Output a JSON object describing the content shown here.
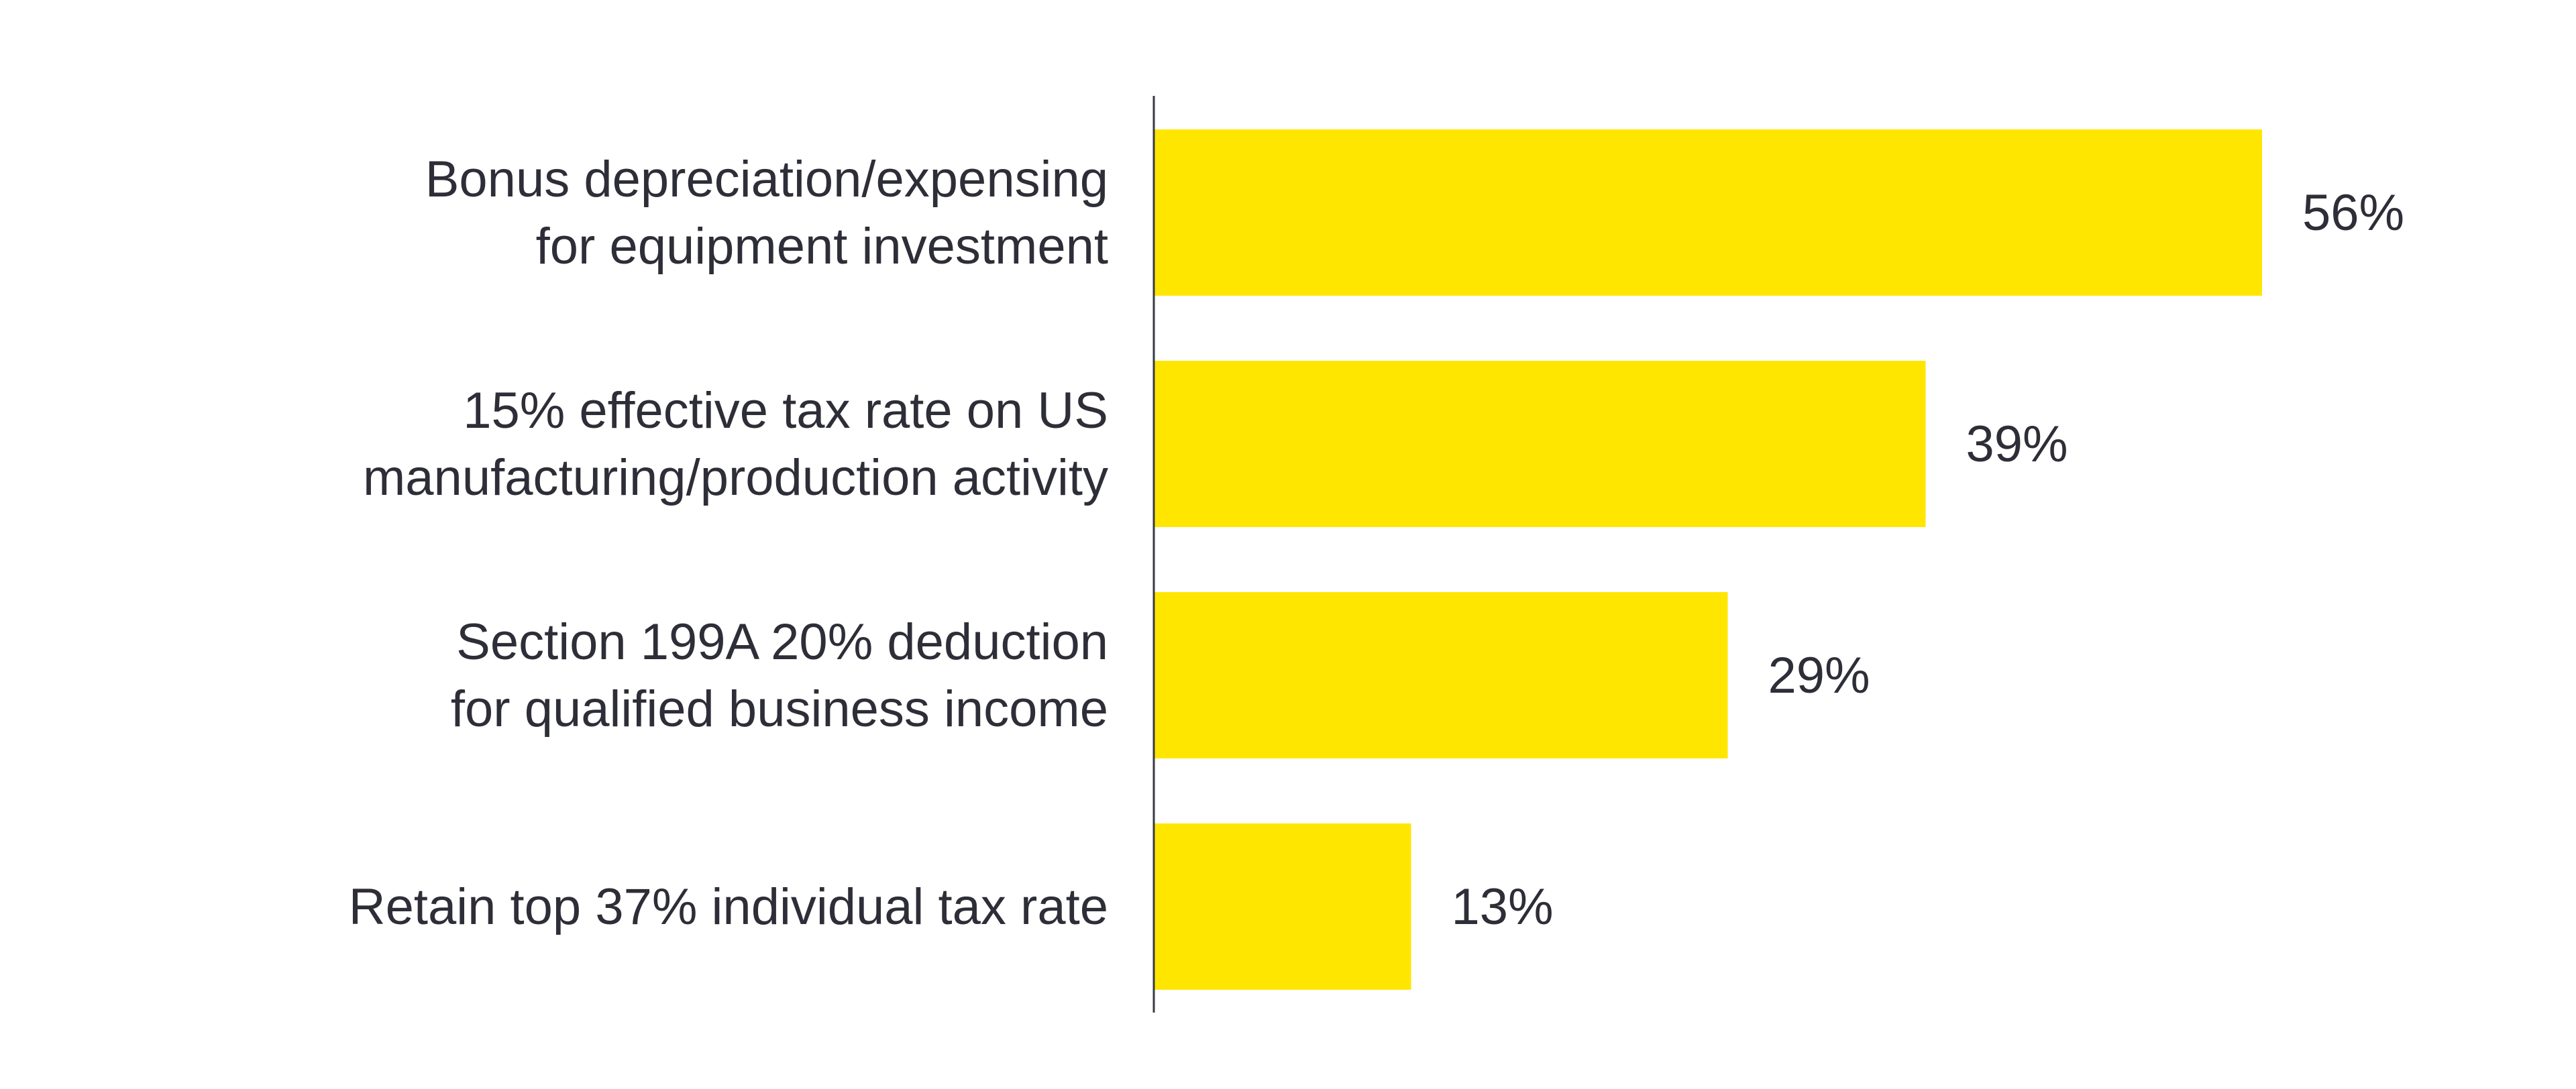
{
  "colors": {
    "bar": "#ffe600",
    "text": "#2e2e38",
    "axis": "#3a3a44",
    "background": "#ffffff"
  },
  "chart_data": {
    "type": "bar",
    "orientation": "horizontal",
    "categories": [
      [
        "Bonus depreciation/expensing",
        "for equipment investment"
      ],
      [
        "15% effective tax rate on US",
        "manufacturing/production activity"
      ],
      [
        "Section 199A 20% deduction",
        "for qualified business income"
      ],
      [
        "Retain top 37% individual tax rate"
      ]
    ],
    "values": [
      56,
      39,
      29,
      13
    ],
    "value_labels": [
      "56%",
      "39%",
      "29%",
      "13%"
    ],
    "unit": "%",
    "xlim": [
      0,
      100
    ],
    "grid": false,
    "legend": "none"
  }
}
